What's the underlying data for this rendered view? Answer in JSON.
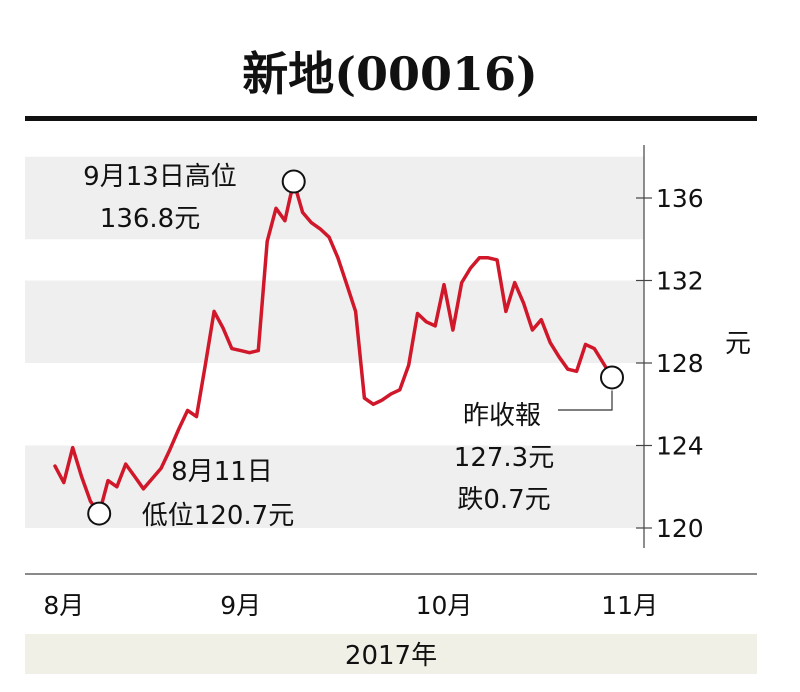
{
  "chart_data": {
    "type": "line",
    "title": "新地(00016)",
    "ylabel": "元",
    "xlabel": "2017年",
    "ylim": [
      118.5,
      138
    ],
    "yticks": [
      {
        "value": 136,
        "label": "136"
      },
      {
        "value": 132,
        "label": "132"
      },
      {
        "value": 128,
        "label": "128"
      },
      {
        "value": 124,
        "label": "124"
      },
      {
        "value": 120,
        "label": "120"
      }
    ],
    "xticks": [
      {
        "index": 1,
        "label": "8月"
      },
      {
        "index": 21,
        "label": "9月"
      },
      {
        "index": 44,
        "label": "10月"
      },
      {
        "index": 65,
        "label": "11月"
      }
    ],
    "line_color": "#d0182a",
    "series": [
      {
        "values": [
          123.0,
          122.2,
          123.9,
          122.5,
          121.3,
          120.7,
          122.3,
          122.0,
          123.1,
          122.5,
          121.9,
          122.4,
          122.9,
          123.8,
          124.8,
          125.7,
          125.4,
          127.9,
          130.5,
          129.7,
          128.7,
          128.6,
          128.5,
          128.6,
          133.9,
          135.5,
          134.9,
          136.8,
          135.3,
          134.8,
          134.5,
          134.1,
          133.1,
          131.8,
          130.5,
          126.3,
          126.0,
          126.2,
          126.5,
          126.7,
          127.9,
          130.4,
          130.0,
          129.8,
          131.8,
          129.6,
          131.9,
          132.6,
          133.1,
          133.1,
          133.0,
          130.5,
          131.9,
          130.9,
          129.6,
          130.1,
          129.0,
          128.3,
          127.7,
          127.6,
          128.9,
          128.7,
          128.0,
          127.3
        ]
      }
    ],
    "annotations": [
      {
        "index": 27,
        "value": 136.8,
        "lines": [
          "9月13日高位",
          "136.8元"
        ]
      },
      {
        "index": 5,
        "value": 120.7,
        "lines": [
          "8月11日",
          "低位120.7元"
        ]
      },
      {
        "index": 63,
        "value": 127.3,
        "lines": [
          "昨收報",
          "127.3元",
          "跌0.7元"
        ]
      }
    ],
    "bands": [
      [
        134,
        138
      ],
      [
        128,
        132
      ],
      [
        120,
        124
      ]
    ],
    "band_color": "#efefef",
    "footer_color": "#f1f0e6"
  }
}
